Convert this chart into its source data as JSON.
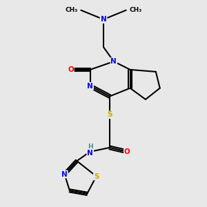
{
  "background_color": "#e8e8e8",
  "bond_color": "#000000",
  "atom_colors": {
    "N": "#0000ff",
    "O": "#ff0000",
    "S": "#ccaa00",
    "H": "#4a8a8a",
    "C": "#000000"
  },
  "figsize": [
    3.0,
    3.0
  ],
  "dpi": 100,
  "lw": 1.5
}
